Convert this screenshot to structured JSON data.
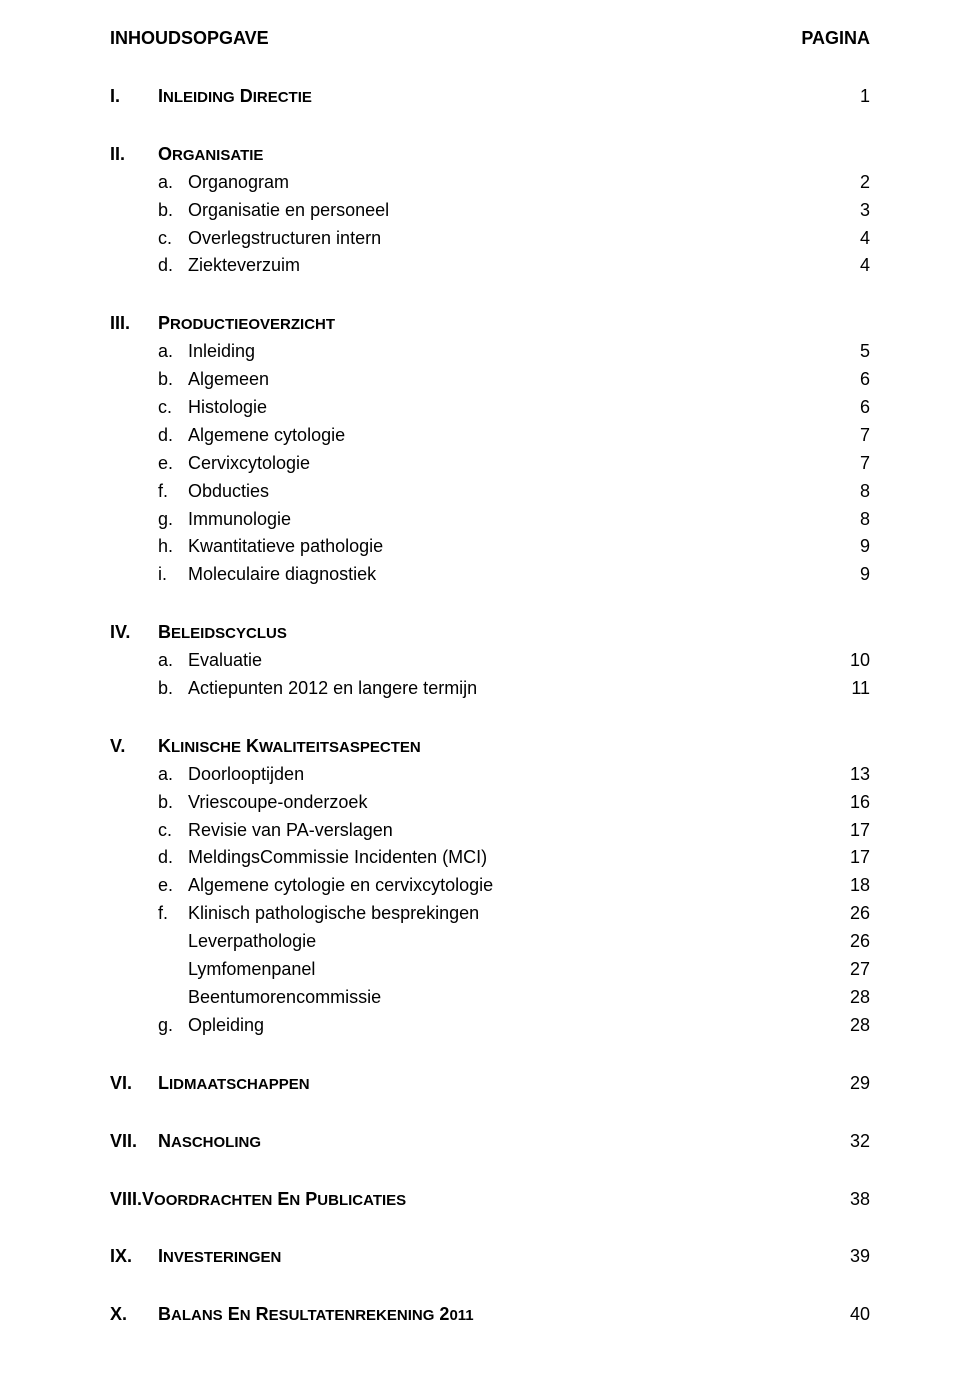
{
  "header": {
    "left": "INHOUDSOPGAVE",
    "right": "PAGINA"
  },
  "sections": [
    {
      "roman": "I.",
      "title": "INLEIDING DIRECTIE",
      "page": "1",
      "items": []
    },
    {
      "roman": "II.",
      "title": "ORGANISATIE",
      "page": "",
      "items": [
        {
          "letter": "a.",
          "text": "Organogram",
          "page": "2"
        },
        {
          "letter": "b.",
          "text": "Organisatie en personeel",
          "page": "3"
        },
        {
          "letter": "c.",
          "text": "Overlegstructuren intern",
          "page": "4"
        },
        {
          "letter": "d.",
          "text": "Ziekteverzuim",
          "page": "4"
        }
      ]
    },
    {
      "roman": "III.",
      "title": "PRODUCTIEOVERZICHT",
      "page": "",
      "items": [
        {
          "letter": "a.",
          "text": "Inleiding",
          "page": "5"
        },
        {
          "letter": "b.",
          "text": "Algemeen",
          "page": "6"
        },
        {
          "letter": "c.",
          "text": "Histologie",
          "page": "6"
        },
        {
          "letter": "d.",
          "text": "Algemene cytologie",
          "page": "7"
        },
        {
          "letter": "e.",
          "text": "Cervixcytologie",
          "page": "7"
        },
        {
          "letter": "f.",
          "text": "Obducties",
          "page": "8"
        },
        {
          "letter": "g.",
          "text": "Immunologie",
          "page": "8"
        },
        {
          "letter": "h.",
          "text": "Kwantitatieve pathologie",
          "page": "9"
        },
        {
          "letter": "i.",
          "text": "Moleculaire diagnostiek",
          "page": "9"
        }
      ]
    },
    {
      "roman": "IV.",
      "title": "BELEIDSCYCLUS",
      "page": "",
      "items": [
        {
          "letter": "a.",
          "text": "Evaluatie",
          "page": "10"
        },
        {
          "letter": "b.",
          "text": "Actiepunten 2012 en langere termijn",
          "page": "11"
        }
      ]
    },
    {
      "roman": "V.",
      "title": "KLINISCHE KWALITEITSASPECTEN",
      "page": "",
      "items": [
        {
          "letter": "a.",
          "text": "Doorlooptijden",
          "page": "13"
        },
        {
          "letter": "b.",
          "text": "Vriescoupe-onderzoek",
          "page": "16"
        },
        {
          "letter": "c.",
          "text": "Revisie van PA-verslagen",
          "page": "17"
        },
        {
          "letter": "d.",
          "text": "MeldingsCommissie Incidenten (MCI)",
          "page": "17"
        },
        {
          "letter": "e.",
          "text": "Algemene cytologie en cervixcytologie",
          "page": "18"
        },
        {
          "letter": "f.",
          "text": "Klinisch pathologische besprekingen",
          "page": "26"
        },
        {
          "letter": "",
          "text": "Leverpathologie",
          "page": "26",
          "indent2": true
        },
        {
          "letter": "",
          "text": "Lymfomenpanel",
          "page": "27",
          "indent2": true
        },
        {
          "letter": "",
          "text": "Beentumorencommissie",
          "page": "28",
          "indent2": true
        },
        {
          "letter": "g.",
          "text": "Opleiding",
          "page": "28"
        }
      ]
    },
    {
      "roman": "VI.",
      "title": "LIDMAATSCHAPPEN",
      "page": "29",
      "items": []
    },
    {
      "roman": "VII.",
      "title": "NASCHOLING",
      "page": "32",
      "items": []
    },
    {
      "roman": "VIII.",
      "title": "VOORDRACHTEN EN PUBLICATIES",
      "page": "38",
      "items": [],
      "nospace": true
    },
    {
      "roman": "IX.",
      "title": "INVESTERINGEN",
      "page": "39",
      "items": []
    },
    {
      "roman": "X.",
      "title": "BALANS EN RESULTATENREKENING 2011",
      "page": "40",
      "items": []
    }
  ]
}
